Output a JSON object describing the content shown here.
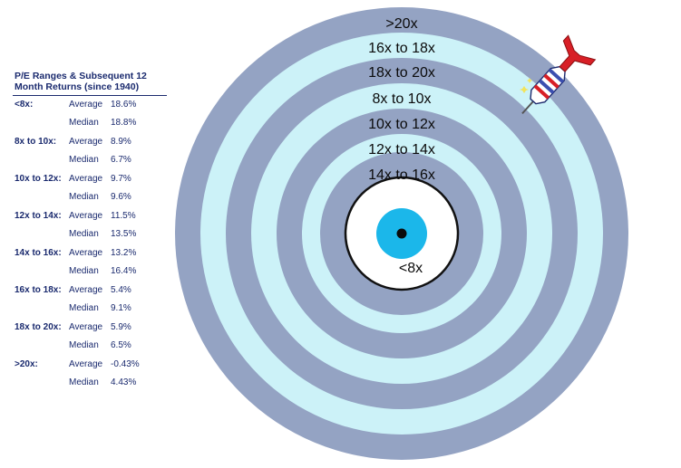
{
  "legend": {
    "title_line1": "P/E Ranges & Subsequent 12",
    "title_line2": "Month Returns (since 1940)",
    "groups": [
      {
        "range": "<8x:",
        "average_label": "Average",
        "average": "18.6%",
        "median_label": "Median",
        "median": "18.8%"
      },
      {
        "range": "8x to 10x:",
        "average_label": "Average",
        "average": "8.9%",
        "median_label": "Median",
        "median": "6.7%"
      },
      {
        "range": "10x to 12x:",
        "average_label": "Average",
        "average": "9.7%",
        "median_label": "Median",
        "median": "9.6%"
      },
      {
        "range": "12x to 14x:",
        "average_label": "Average",
        "average": "11.5%",
        "median_label": "Median",
        "median": "13.5%"
      },
      {
        "range": "14x to 16x:",
        "average_label": "Average",
        "average": "13.2%",
        "median_label": "Median",
        "median": "16.4%"
      },
      {
        "range": "16x to 18x:",
        "average_label": "Average",
        "average": "5.4%",
        "median_label": "Median",
        "median": "9.1%"
      },
      {
        "range": "18x to 20x:",
        "average_label": "Average",
        "average": "5.9%",
        "median_label": "Median",
        "median": "6.5%"
      },
      {
        "range": ">20x:",
        "average_label": "Average",
        "average": "-0.43%",
        "median_label": "Median",
        "median": "4.43%"
      }
    ]
  },
  "target": {
    "ring_labels": [
      ">20x",
      "16x to 18x",
      "18x to 20x",
      "8x to 10x",
      "10x to 12x",
      "12x to 14x",
      "14x to 16x"
    ],
    "center_label": "<8x"
  },
  "colors": {
    "dark_ring": "#94a3c3",
    "light_ring": "#ccf2f8",
    "bullseye": "#1bb7ea",
    "text": "#1a2a6e"
  },
  "icons": [
    "dart-icon"
  ]
}
